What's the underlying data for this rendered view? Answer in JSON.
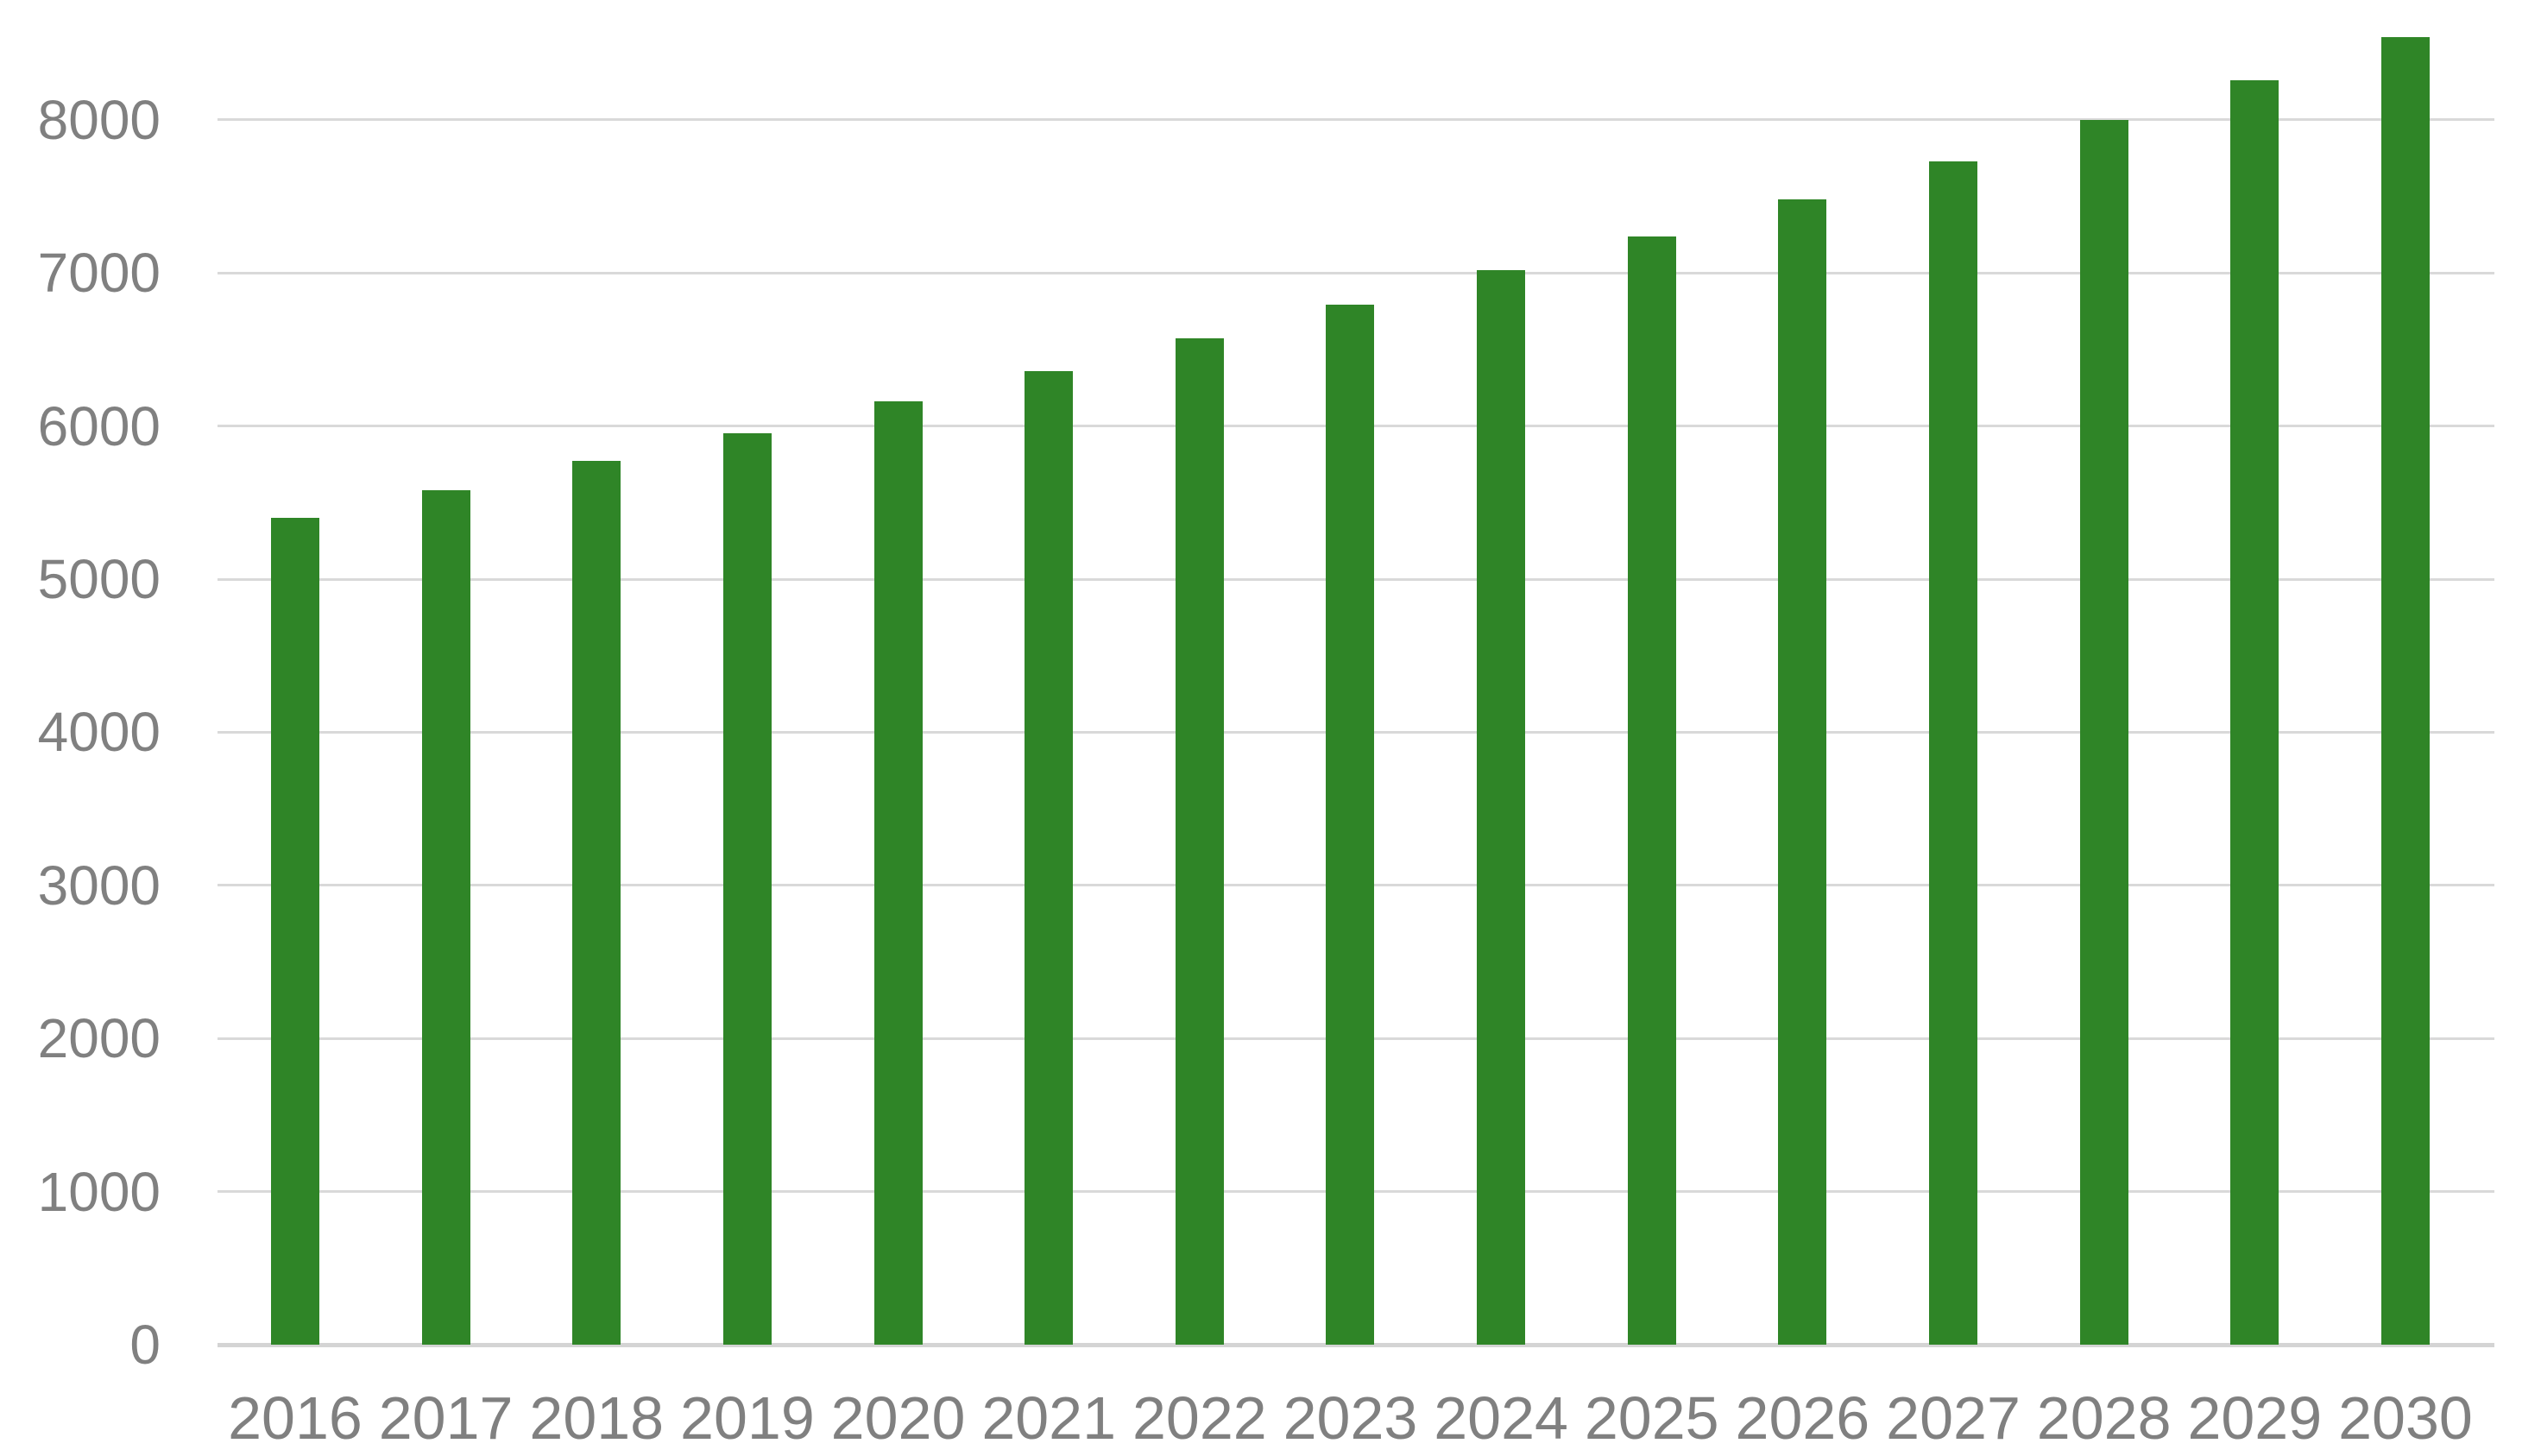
{
  "chart_data": {
    "type": "bar",
    "categories": [
      "2016",
      "2017",
      "2018",
      "2019",
      "2020",
      "2021",
      "2022",
      "2023",
      "2024",
      "2025",
      "2026",
      "2027",
      "2028",
      "2029",
      "2030"
    ],
    "values": [
      5400,
      5580,
      5770,
      5950,
      6160,
      6360,
      6570,
      6790,
      7020,
      7240,
      7480,
      7730,
      8000,
      8260,
      8540
    ],
    "yticks": [
      0,
      1000,
      2000,
      3000,
      4000,
      5000,
      6000,
      7000,
      8000
    ],
    "ytick_labels": [
      "0",
      "1000",
      "2000",
      "3000",
      "4000",
      "5000",
      "6000",
      "7000",
      "8000"
    ],
    "ylim": [
      0,
      8780
    ],
    "grid": "horizontal",
    "legend": "none",
    "bar_color": "#2F8527",
    "gridline_color": "#D9D9D9",
    "axis_line_color": "#D4D4D4",
    "label_color": "#808080"
  }
}
